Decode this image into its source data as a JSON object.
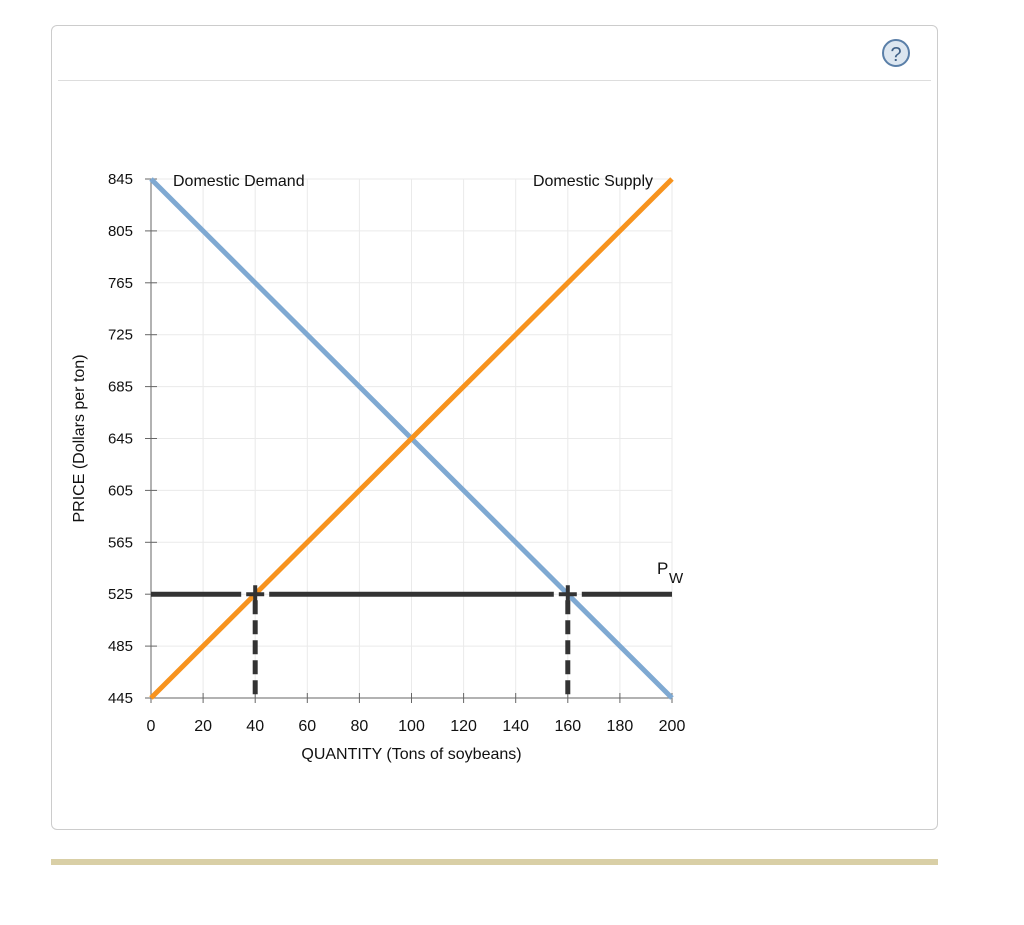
{
  "help_icon": "?",
  "chart_data": {
    "type": "line",
    "xlabel": "QUANTITY (Tons of soybeans)",
    "ylabel": "PRICE (Dollars per ton)",
    "xlim": [
      0,
      200
    ],
    "ylim": [
      445,
      845
    ],
    "xticks": [
      0,
      20,
      40,
      60,
      80,
      100,
      120,
      140,
      160,
      180,
      200
    ],
    "yticks": [
      445,
      485,
      525,
      565,
      605,
      645,
      685,
      725,
      765,
      805,
      845
    ],
    "grid": true,
    "series": [
      {
        "name": "Domestic Demand",
        "color": "#7fa9d2",
        "points": [
          [
            0,
            845
          ],
          [
            200,
            445
          ]
        ]
      },
      {
        "name": "Domestic Supply",
        "color": "#f7931e",
        "points": [
          [
            0,
            445
          ],
          [
            200,
            845
          ]
        ]
      }
    ],
    "world_price": {
      "label": "P",
      "subscript": "W",
      "value": 525,
      "color": "#333333"
    },
    "markers": [
      {
        "x": 40,
        "y": 525
      },
      {
        "x": 160,
        "y": 525
      }
    ]
  }
}
